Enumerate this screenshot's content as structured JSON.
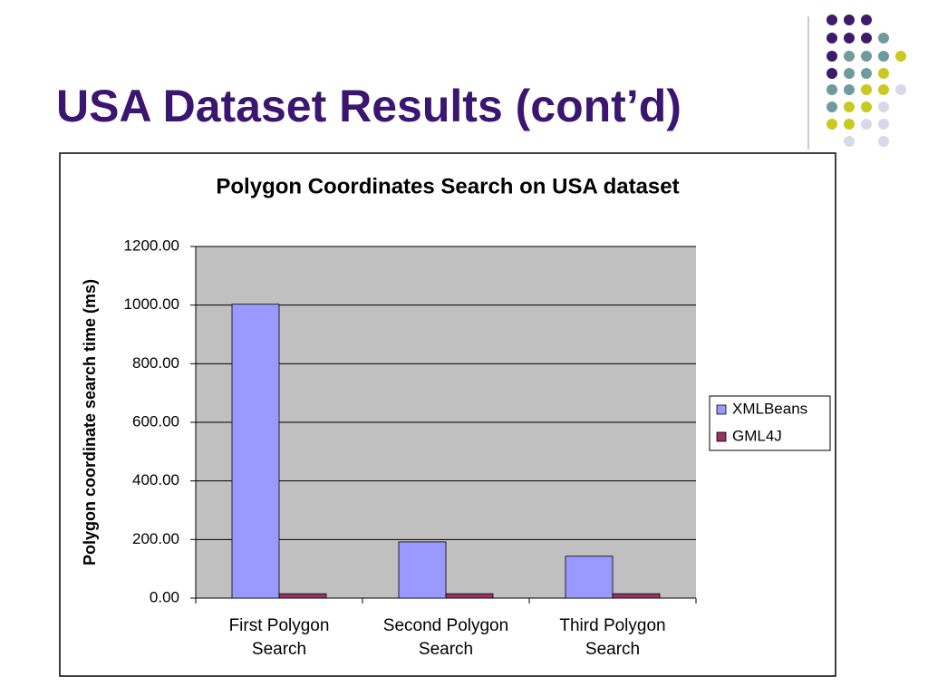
{
  "slide_title": "USA Dataset Results (cont’d)",
  "chart_data": {
    "type": "bar",
    "title": "Polygon Coordinates Search on USA dataset",
    "y_label": "Polygon coordinate search time (ms)",
    "categories": [
      "First Polygon Search",
      "Second Polygon Search",
      "Third Polygon Search"
    ],
    "series": [
      {
        "name": "XMLBeans",
        "color": "#9999ff",
        "values": [
          1003,
          192,
          143
        ]
      },
      {
        "name": "GML4J",
        "color": "#993366",
        "values": [
          15,
          15,
          15
        ]
      }
    ],
    "ylim": [
      0,
      1200
    ],
    "yticks": [
      {
        "value": 0,
        "label": "0.00"
      },
      {
        "value": 200,
        "label": "200.00"
      },
      {
        "value": 400,
        "label": "400.00"
      },
      {
        "value": 600,
        "label": "600.00"
      },
      {
        "value": 800,
        "label": "800.00"
      },
      {
        "value": 1000,
        "label": "1000.00"
      },
      {
        "value": 1200,
        "label": "1200.00"
      }
    ],
    "grid": true,
    "legend": "right"
  }
}
